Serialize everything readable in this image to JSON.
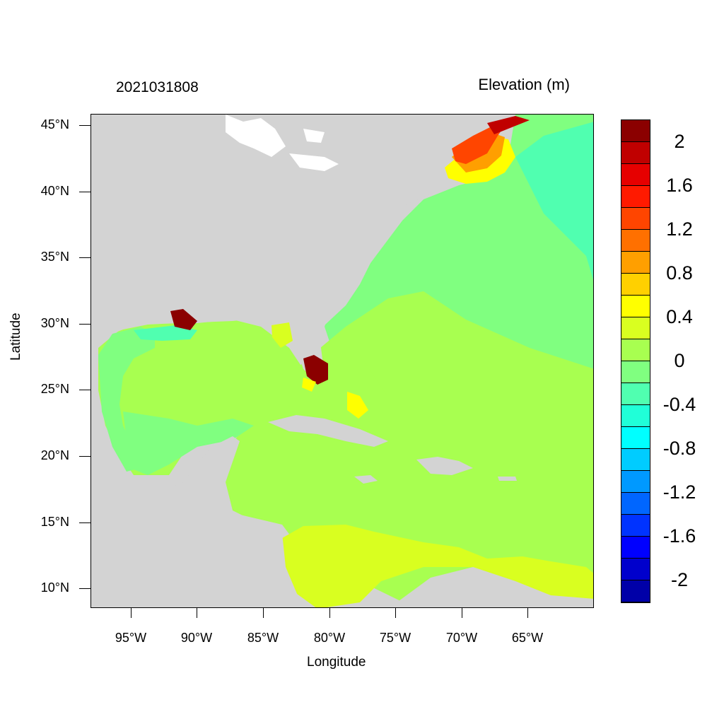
{
  "title": {
    "left": "2021031808",
    "right": "Elevation (m)"
  },
  "axes": {
    "xlabel": "Longitude",
    "ylabel": "Latitude",
    "xticks": [
      "95°W",
      "90°W",
      "85°W",
      "80°W",
      "75°W",
      "70°W",
      "65°W"
    ],
    "yticks": [
      "45°N",
      "40°N",
      "35°N",
      "30°N",
      "25°N",
      "20°N",
      "15°N",
      "10°N"
    ],
    "lon_range": [
      -98,
      -60
    ],
    "lat_range": [
      8.5,
      46
    ]
  },
  "colorbar": {
    "labels": [
      "2",
      "1.6",
      "1.2",
      "0.8",
      "0.4",
      "0",
      "-0.4",
      "-0.8",
      "-1.2",
      "-1.6",
      "-2"
    ],
    "colors": [
      "#8b0000",
      "#c00000",
      "#e60000",
      "#ff1a00",
      "#ff4500",
      "#ff7000",
      "#ff9f00",
      "#ffd000",
      "#ffff00",
      "#d9ff20",
      "#a8ff50",
      "#80ff80",
      "#50ffb0",
      "#20ffd8",
      "#00ffff",
      "#00ccff",
      "#0099ff",
      "#0066ff",
      "#0033ff",
      "#0000ff",
      "#0000cc",
      "#0000a8"
    ]
  },
  "map": {
    "land_color": "#d3d3d3",
    "region": "Gulf of Mexico, Caribbean Sea and Western North Atlantic"
  }
}
